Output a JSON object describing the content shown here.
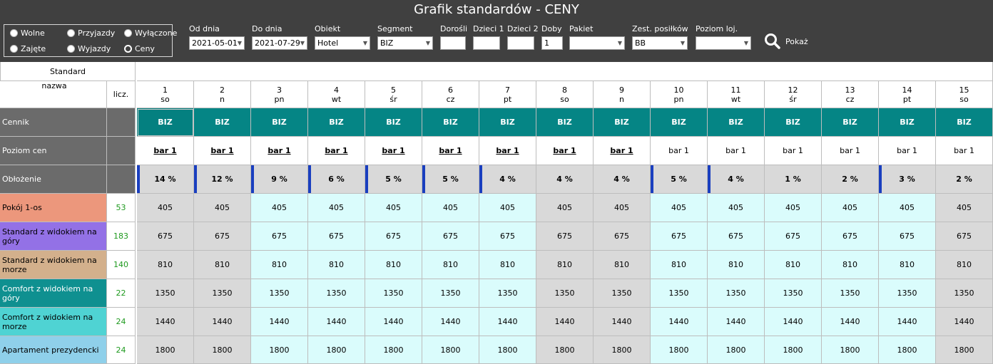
{
  "title": "Grafik standardów - CENY",
  "radios": [
    {
      "label": "Wolne",
      "selected": false
    },
    {
      "label": "Przyjazdy",
      "selected": false
    },
    {
      "label": "Wyłączone",
      "selected": false
    },
    {
      "label": "Zajęte",
      "selected": false
    },
    {
      "label": "Wyjazdy",
      "selected": false
    },
    {
      "label": "Ceny",
      "selected": true
    }
  ],
  "filters": {
    "od_dnia": {
      "label": "Od dnia",
      "value": "2021-05-01"
    },
    "do_dnia": {
      "label": "Do dnia",
      "value": "2021-07-29"
    },
    "obiekt": {
      "label": "Obiekt",
      "value": "Hotel"
    },
    "segment": {
      "label": "Segment",
      "value": "BIZ"
    },
    "dorosli": {
      "label": "Dorośli",
      "value": ""
    },
    "dzieci1": {
      "label": "Dzieci 1",
      "value": ""
    },
    "dzieci2": {
      "label": "Dzieci 2",
      "value": ""
    },
    "doby": {
      "label": "Doby",
      "value": "1"
    },
    "pakiet": {
      "label": "Pakiet",
      "value": ""
    },
    "posilki": {
      "label": "Zest. posiłków",
      "value": "BB"
    },
    "poziom": {
      "label": "Poziom loj.",
      "value": ""
    }
  },
  "search_label": "Pokaż",
  "table": {
    "standard_header": "Standard",
    "name_header": "nazwa",
    "count_header": "licz.",
    "days": [
      {
        "num": "1",
        "dow": "so",
        "weekend": true
      },
      {
        "num": "2",
        "dow": "n",
        "weekend": true
      },
      {
        "num": "3",
        "dow": "pn",
        "weekend": false
      },
      {
        "num": "4",
        "dow": "wt",
        "weekend": false
      },
      {
        "num": "5",
        "dow": "śr",
        "weekend": false
      },
      {
        "num": "6",
        "dow": "cz",
        "weekend": false
      },
      {
        "num": "7",
        "dow": "pt",
        "weekend": false
      },
      {
        "num": "8",
        "dow": "so",
        "weekend": true
      },
      {
        "num": "9",
        "dow": "n",
        "weekend": true
      },
      {
        "num": "10",
        "dow": "pn",
        "weekend": false
      },
      {
        "num": "11",
        "dow": "wt",
        "weekend": false
      },
      {
        "num": "12",
        "dow": "śr",
        "weekend": false
      },
      {
        "num": "13",
        "dow": "cz",
        "weekend": false
      },
      {
        "num": "14",
        "dow": "pt",
        "weekend": false
      },
      {
        "num": "15",
        "dow": "so",
        "weekend": true
      }
    ],
    "cennik_label": "Cennik",
    "cennik": [
      "BIZ",
      "BIZ",
      "BIZ",
      "BIZ",
      "BIZ",
      "BIZ",
      "BIZ",
      "BIZ",
      "BIZ",
      "BIZ",
      "BIZ",
      "BIZ",
      "BIZ",
      "BIZ",
      "BIZ"
    ],
    "poziom_label": "Poziom cen",
    "poziom": [
      "bar 1",
      "bar 1",
      "bar 1",
      "bar 1",
      "bar 1",
      "bar 1",
      "bar 1",
      "bar 1",
      "bar 1",
      "bar 1",
      "bar 1",
      "bar 1",
      "bar 1",
      "bar 1",
      "bar 1"
    ],
    "poziom_underlined": [
      true,
      true,
      true,
      true,
      true,
      true,
      true,
      true,
      true,
      false,
      false,
      false,
      false,
      false,
      false
    ],
    "oblozenie_label": "Obłożenie",
    "oblozenie": [
      "14 %",
      "12 %",
      "9 %",
      "6 %",
      "5 %",
      "5 %",
      "4 %",
      "4 %",
      "4 %",
      "5 %",
      "4 %",
      "1 %",
      "2 %",
      "3 %",
      "2 %"
    ],
    "oblozenie_marked": [
      true,
      true,
      true,
      true,
      true,
      true,
      true,
      false,
      false,
      true,
      true,
      false,
      false,
      true,
      false
    ],
    "rooms": [
      {
        "name": "Pokój 1-os",
        "count": "53",
        "color": "#ec977c",
        "prices": [
          "405",
          "405",
          "405",
          "405",
          "405",
          "405",
          "405",
          "405",
          "405",
          "405",
          "405",
          "405",
          "405",
          "405",
          "405"
        ]
      },
      {
        "name": "Standard z widokiem na góry",
        "count": "183",
        "color": "#9371e6",
        "prices": [
          "675",
          "675",
          "675",
          "675",
          "675",
          "675",
          "675",
          "675",
          "675",
          "675",
          "675",
          "675",
          "675",
          "675",
          "675"
        ]
      },
      {
        "name": "Standard z widokiem na morze",
        "count": "140",
        "color": "#d3b08c",
        "prices": [
          "810",
          "810",
          "810",
          "810",
          "810",
          "810",
          "810",
          "810",
          "810",
          "810",
          "810",
          "810",
          "810",
          "810",
          "810"
        ]
      },
      {
        "name": "Comfort z widokiem na góry",
        "count": "22",
        "color": "#0f9090",
        "prices": [
          "1350",
          "1350",
          "1350",
          "1350",
          "1350",
          "1350",
          "1350",
          "1350",
          "1350",
          "1350",
          "1350",
          "1350",
          "1350",
          "1350",
          "1350"
        ]
      },
      {
        "name": "Comfort z widokiem na morze",
        "count": "24",
        "color": "#4fd3d3",
        "prices": [
          "1440",
          "1440",
          "1440",
          "1440",
          "1440",
          "1440",
          "1440",
          "1440",
          "1440",
          "1440",
          "1440",
          "1440",
          "1440",
          "1440",
          "1440"
        ]
      },
      {
        "name": "Apartament prezydencki",
        "count": "24",
        "color": "#8fd0ea",
        "prices": [
          "1800",
          "1800",
          "1800",
          "1800",
          "1800",
          "1800",
          "1800",
          "1800",
          "1800",
          "1800",
          "1800",
          "1800",
          "1800",
          "1800",
          "1800"
        ]
      }
    ]
  }
}
